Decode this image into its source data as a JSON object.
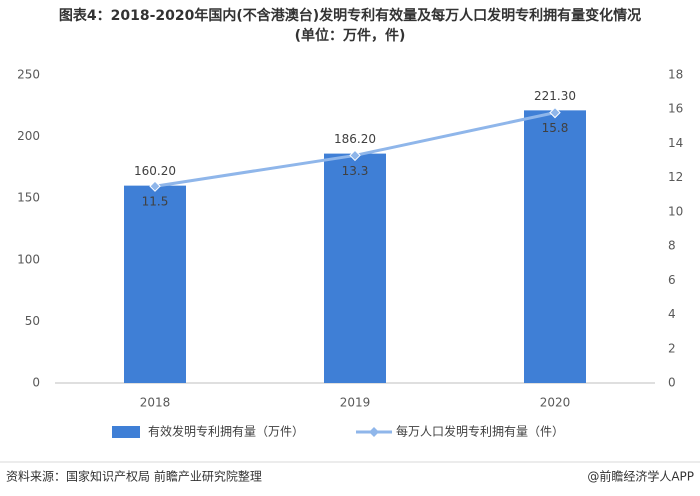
{
  "chart_data": {
    "type": "combo",
    "title": "图表4：2018-2020年国内(不含港澳台)发明专利有效量及每万人口发明专利拥有量变化情况",
    "subtitle": "(单位：万件，件)",
    "categories": [
      "2018",
      "2019",
      "2020"
    ],
    "series": [
      {
        "name": "有效发明专利拥有量（万件）",
        "type": "bar",
        "color": "#3f7fd6",
        "values": [
          160.2,
          186.2,
          221.3
        ],
        "value_labels": [
          "160.20",
          "186.20",
          "221.30"
        ]
      },
      {
        "name": "每万人口发明专利拥有量（件）",
        "type": "line",
        "axis": "y2",
        "color": "#8fb6ea",
        "values": [
          11.5,
          13.3,
          15.8
        ]
      }
    ],
    "ylim": [
      0,
      250
    ],
    "yticks": [
      0,
      50,
      100,
      150,
      200,
      250
    ],
    "y2lim": [
      0,
      18
    ],
    "y2ticks": [
      0,
      2,
      4,
      6,
      8,
      10,
      12,
      14,
      16,
      18
    ],
    "source": "资料来源：国家知识产权局 前瞻产业研究院整理",
    "credit": "@前瞻经济学人APP"
  }
}
